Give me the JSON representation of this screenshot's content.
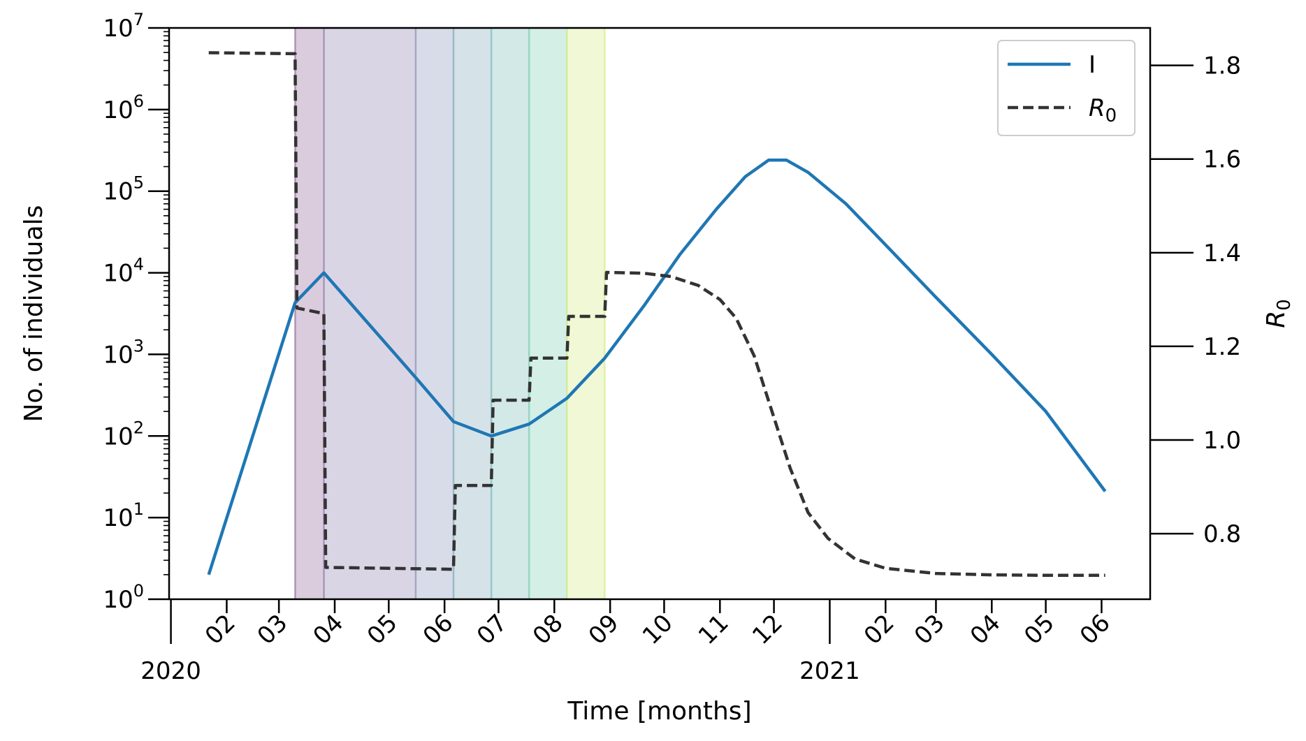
{
  "chart_data": {
    "type": "line",
    "xlabel": "Time [months]",
    "ylabel_left": "No. of individuals",
    "ylabel_right": "R",
    "ylabel_right_subscript": "0",
    "y_left_scale": "log",
    "y_left_lim": [
      1,
      10000000
    ],
    "y_left_ticks": [
      {
        "value": 1,
        "base": "10",
        "exp": "0"
      },
      {
        "value": 10,
        "base": "10",
        "exp": "1"
      },
      {
        "value": 100,
        "base": "10",
        "exp": "2"
      },
      {
        "value": 1000,
        "base": "10",
        "exp": "3"
      },
      {
        "value": 10000,
        "base": "10",
        "exp": "4"
      },
      {
        "value": 100000,
        "base": "10",
        "exp": "5"
      },
      {
        "value": 1000000,
        "base": "10",
        "exp": "6"
      },
      {
        "value": 10000000,
        "base": "10",
        "exp": "7"
      }
    ],
    "y_right_lim": [
      0.66,
      1.88
    ],
    "y_right_ticks": [
      "0.8",
      "1.0",
      "1.2",
      "1.4",
      "1.6",
      "1.8"
    ],
    "x_lim": [
      "2019-12-31",
      "2021-06-28"
    ],
    "x_ticks": [
      {
        "date": "2020-01-01",
        "label": "2020",
        "major": true
      },
      {
        "date": "2020-02-01",
        "label": "02"
      },
      {
        "date": "2020-03-01",
        "label": "03"
      },
      {
        "date": "2020-04-01",
        "label": "04"
      },
      {
        "date": "2020-05-01",
        "label": "05"
      },
      {
        "date": "2020-06-01",
        "label": "06"
      },
      {
        "date": "2020-07-01",
        "label": "07"
      },
      {
        "date": "2020-08-01",
        "label": "08"
      },
      {
        "date": "2020-09-01",
        "label": "09"
      },
      {
        "date": "2020-10-01",
        "label": "10"
      },
      {
        "date": "2020-11-01",
        "label": "11"
      },
      {
        "date": "2020-12-01",
        "label": "12"
      },
      {
        "date": "2021-01-01",
        "label": "2021",
        "major": true
      },
      {
        "date": "2021-02-01",
        "label": "02"
      },
      {
        "date": "2021-03-01",
        "label": "03"
      },
      {
        "date": "2021-04-01",
        "label": "04"
      },
      {
        "date": "2021-05-01",
        "label": "05"
      },
      {
        "date": "2021-06-01",
        "label": "06"
      }
    ],
    "shaded_periods": [
      {
        "start": "2020-03-10",
        "end": "2020-03-26",
        "color": "#440154"
      },
      {
        "start": "2020-03-26",
        "end": "2020-05-16",
        "color": "#472c7a"
      },
      {
        "start": "2020-05-16",
        "end": "2020-06-06",
        "color": "#3b518b"
      },
      {
        "start": "2020-06-06",
        "end": "2020-06-27",
        "color": "#2c718e"
      },
      {
        "start": "2020-06-27",
        "end": "2020-07-18",
        "color": "#21908d"
      },
      {
        "start": "2020-07-18",
        "end": "2020-08-08",
        "color": "#27ad81"
      },
      {
        "start": "2020-08-08",
        "end": "2020-08-29",
        "color": "#b5de2b"
      }
    ],
    "grid": false,
    "legend_position": "top-right",
    "series": [
      {
        "name": "I",
        "axis": "left",
        "color": "#1f77b4",
        "style": "solid",
        "x": [
          "2020-01-22",
          "2020-03-10",
          "2020-03-26",
          "2020-05-16",
          "2020-06-06",
          "2020-06-27",
          "2020-07-18",
          "2020-08-08",
          "2020-08-29",
          "2020-09-20",
          "2020-10-10",
          "2020-10-30",
          "2020-11-15",
          "2020-11-28",
          "2020-12-08",
          "2020-12-20",
          "2021-01-10",
          "2021-02-01",
          "2021-03-01",
          "2021-04-01",
          "2021-05-01",
          "2021-06-03"
        ],
        "y": [
          2,
          4300,
          10000,
          520,
          150,
          100,
          140,
          290,
          900,
          4000,
          17000,
          60000,
          150000,
          240000,
          240000,
          170000,
          70000,
          22000,
          5000,
          1000,
          200,
          21
        ]
      },
      {
        "name": "R",
        "name_subscript": "0",
        "axis": "right",
        "color": "#333333",
        "style": "dashed",
        "x": [
          "2020-01-22",
          "2020-03-10",
          "2020-03-11",
          "2020-03-26",
          "2020-03-27",
          "2020-06-06",
          "2020-06-07",
          "2020-06-27",
          "2020-06-28",
          "2020-07-18",
          "2020-07-19",
          "2020-08-08",
          "2020-08-09",
          "2020-08-29",
          "2020-08-30",
          "2020-09-20",
          "2020-10-05",
          "2020-10-20",
          "2020-11-01",
          "2020-11-10",
          "2020-11-20",
          "2020-11-30",
          "2020-12-10",
          "2020-12-20",
          "2020-12-31",
          "2021-01-15",
          "2021-02-01",
          "2021-03-01",
          "2021-04-01",
          "2021-05-01",
          "2021-06-03"
        ],
        "y": [
          1.827,
          1.825,
          1.282,
          1.27,
          0.728,
          0.724,
          0.903,
          0.903,
          1.085,
          1.085,
          1.175,
          1.175,
          1.264,
          1.264,
          1.358,
          1.356,
          1.349,
          1.33,
          1.3,
          1.26,
          1.18,
          1.06,
          0.94,
          0.845,
          0.79,
          0.746,
          0.726,
          0.715,
          0.712,
          0.711,
          0.711
        ]
      }
    ]
  }
}
